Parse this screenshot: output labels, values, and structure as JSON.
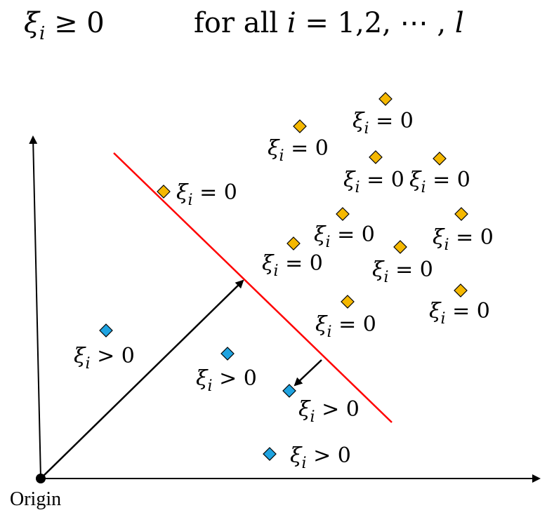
{
  "header": {
    "constraint_left": "ξ_i ≥ 0",
    "constraint_right": "for all i = 1,2, ⋯ , l"
  },
  "axes": {
    "origin_label": "Origin"
  },
  "colors": {
    "positive_point": "#f5b800",
    "negative_point": "#1fa3e0",
    "hyperplane": "#ff0000",
    "axis": "#000000"
  },
  "points": [
    {
      "class": "positive",
      "label": "ξ_i = 0"
    },
    {
      "class": "positive",
      "label": "ξ_i = 0"
    },
    {
      "class": "positive",
      "label": "ξ_i = 0"
    },
    {
      "class": "positive",
      "label": "ξ_i = 0"
    },
    {
      "class": "positive",
      "label": "ξ_i = 0"
    },
    {
      "class": "positive",
      "label": "ξ_i = 0"
    },
    {
      "class": "positive",
      "label": "ξ_i = 0"
    },
    {
      "class": "positive",
      "label": "ξ_i = 0"
    },
    {
      "class": "positive",
      "label": "ξ_i = 0"
    },
    {
      "class": "positive",
      "label": "ξ_i = 0"
    },
    {
      "class": "positive",
      "label": "ξ_i = 0"
    },
    {
      "class": "negative",
      "label": "ξ_i > 0"
    },
    {
      "class": "negative",
      "label": "ξ_i > 0"
    },
    {
      "class": "negative",
      "label": "ξ_i > 0"
    },
    {
      "class": "negative",
      "label": "ξ_i > 0"
    }
  ]
}
